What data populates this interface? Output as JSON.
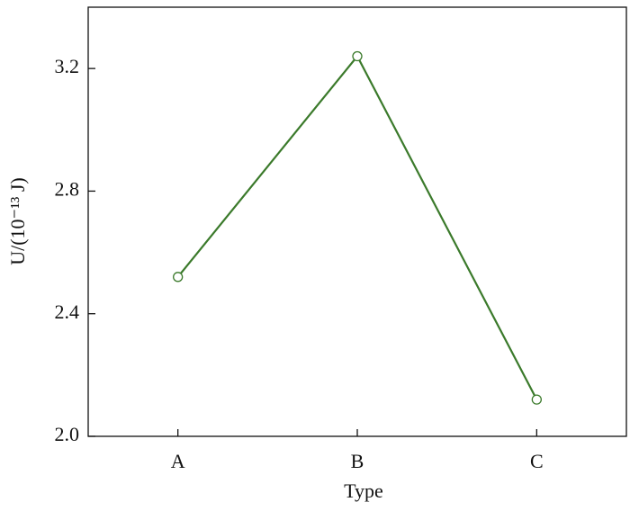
{
  "chart_data": {
    "type": "line",
    "x_label": "Type",
    "y_label": "U/(10⁻¹³ J)",
    "categories": [
      "A",
      "B",
      "C"
    ],
    "values": [
      2.52,
      3.24,
      2.12
    ],
    "color": "#3b7a2b",
    "ylim": [
      2.0,
      3.4
    ],
    "yticks": [
      {
        "value": 2.0,
        "label": "2.0"
      },
      {
        "value": 2.4,
        "label": "2.4"
      },
      {
        "value": 2.8,
        "label": "2.8"
      },
      {
        "value": 3.2,
        "label": "3.2"
      }
    ]
  }
}
